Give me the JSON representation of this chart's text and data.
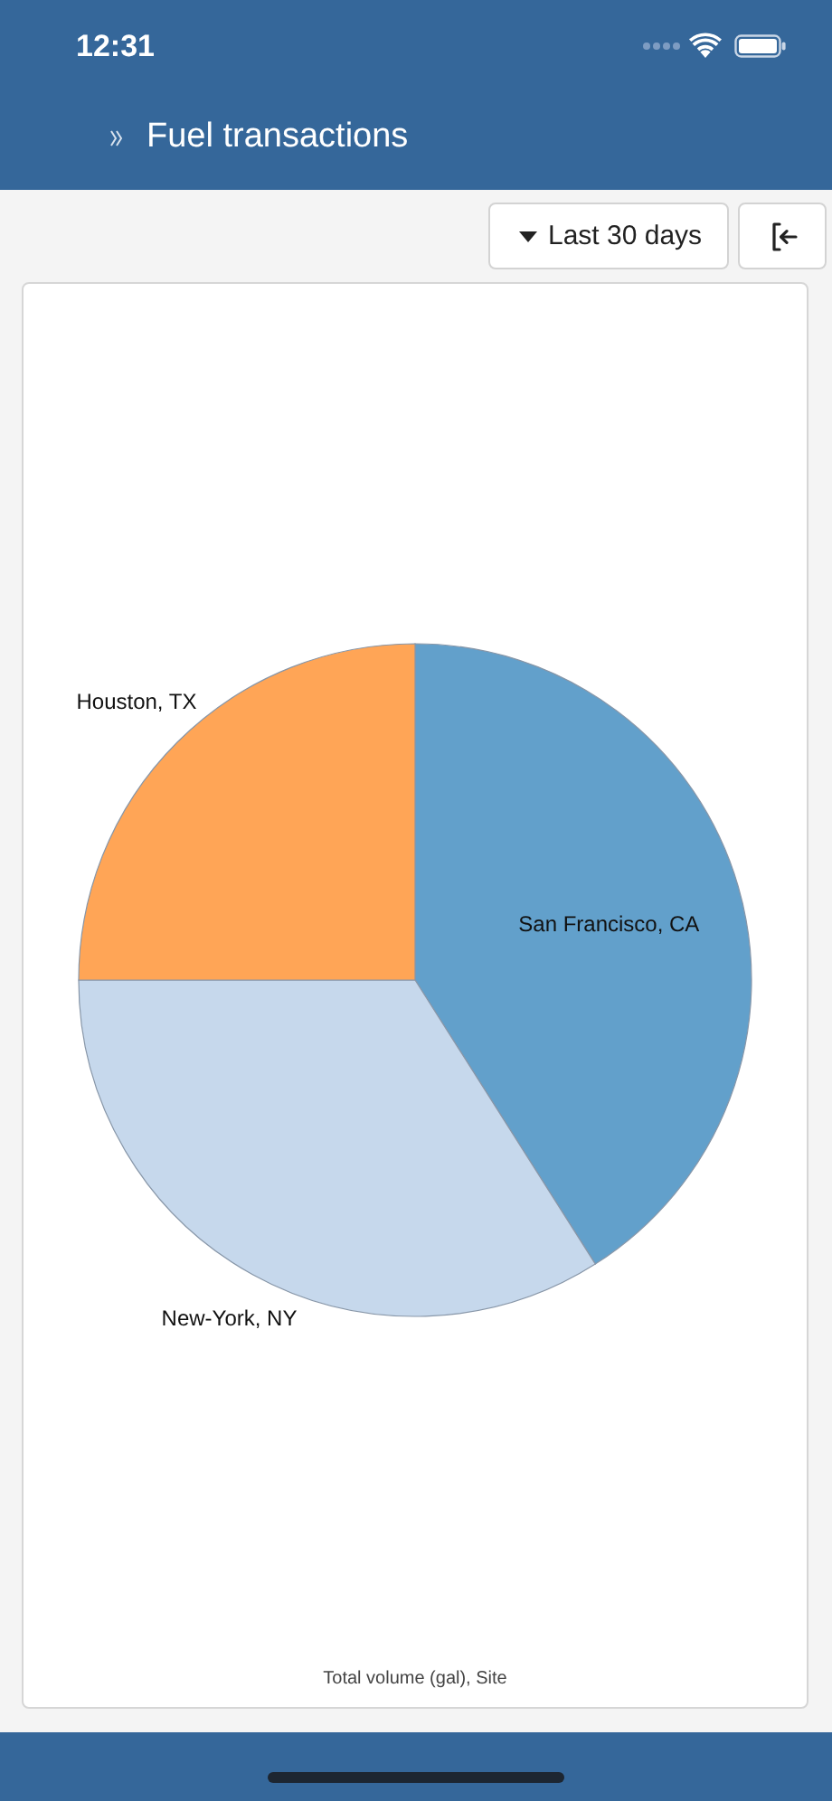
{
  "chart_data": {
    "type": "pie",
    "title": "Fuel transactions",
    "categories": [
      "San Francisco, CA",
      "New-York, NY",
      "Houston, TX"
    ],
    "values": [
      41,
      34,
      25
    ],
    "colors": [
      "#62a0cb",
      "#c6d8ec",
      "#ffa556"
    ],
    "annotations": [
      "Total volume (gal), Site",
      "12:31",
      "Last 30 days"
    ]
  }
}
